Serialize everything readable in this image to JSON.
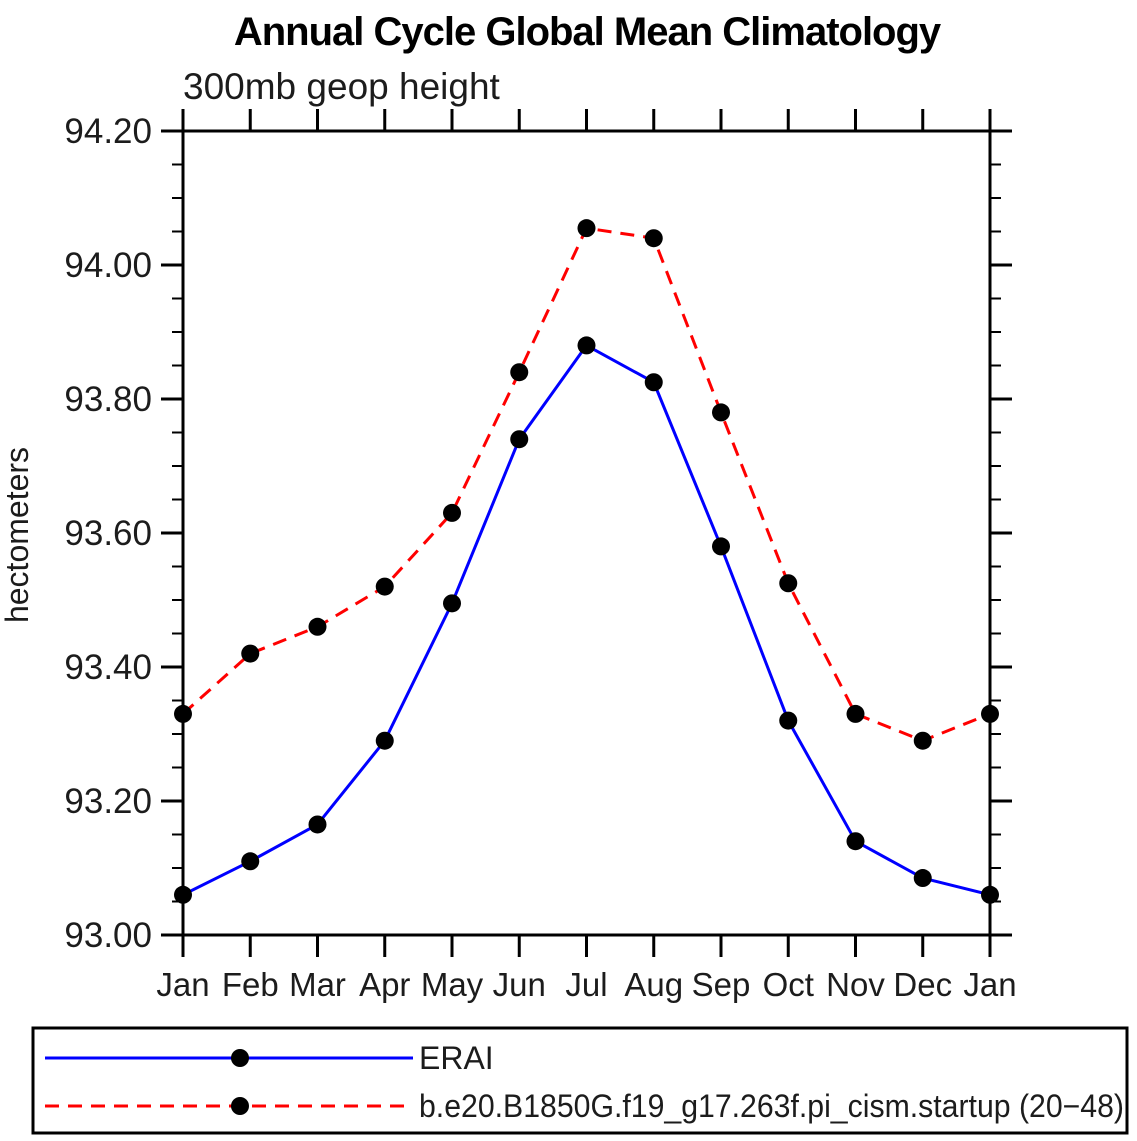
{
  "chart_data": {
    "type": "line",
    "title": "Annual Cycle Global Mean Climatology",
    "subtitle": "300mb geop height",
    "ylabel": "hectometers",
    "xlabel": "",
    "categories": [
      "Jan",
      "Feb",
      "Mar",
      "Apr",
      "May",
      "Jun",
      "Jul",
      "Aug",
      "Sep",
      "Oct",
      "Nov",
      "Dec",
      "Jan"
    ],
    "ylim": [
      93.0,
      94.2
    ],
    "y_major_tick_step": 0.2,
    "y_minor_tick_step": 0.05,
    "y_tick_labels": [
      "93.00",
      "93.20",
      "93.40",
      "93.60",
      "93.80",
      "94.00",
      "94.20"
    ],
    "grid": false,
    "legend_position": "bottom",
    "axis_color": "#000000",
    "marker_shape": "filled-circle",
    "marker_color": "#000000",
    "series": [
      {
        "name": "ERAI",
        "color": "#0000ff",
        "line_style": "solid",
        "values": [
          93.06,
          93.11,
          93.165,
          93.29,
          93.495,
          93.74,
          93.88,
          93.825,
          93.58,
          93.32,
          93.14,
          93.085,
          93.06
        ]
      },
      {
        "name": "b.e20.B1850G.f19_g17.263f.pi_cism.startup (20−48)",
        "color": "#ff0000",
        "line_style": "dashed",
        "values": [
          93.33,
          93.42,
          93.46,
          93.52,
          93.63,
          93.84,
          94.055,
          94.04,
          93.78,
          93.525,
          93.33,
          93.29,
          93.33
        ]
      }
    ]
  }
}
